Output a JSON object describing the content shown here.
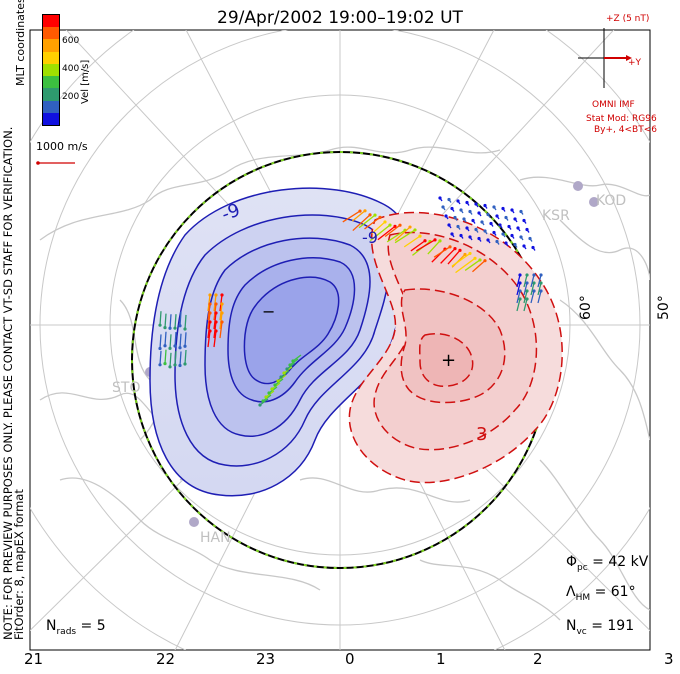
{
  "title": "29/Apr/2002 19:00–19:02 UT",
  "colorbar": {
    "label": "Vel [m/s]",
    "ticks": [
      "600",
      "400",
      "200"
    ],
    "colors": [
      "#ff0000",
      "#ff5a00",
      "#ffa000",
      "#ffd000",
      "#a0e000",
      "#3cc040",
      "#2e9a6e",
      "#3060c0",
      "#1010e0"
    ]
  },
  "coordinates_label": "MLT coordinates",
  "note_line1": "NOTE: FOR PREVIEW PURPOSES ONLY. PLEASE CONTACT VT-SD STAFF FOR VERIFICATION.",
  "note_line2": "FitOrder: 8, mapEX format",
  "vector_scale": "1000 m/s",
  "imf": {
    "z_label": "+Z (5 nT)",
    "y_label": "+Y",
    "source": "OMNI IMF",
    "model": "Stat Mod: RG96",
    "condition": "By+, 4<BT<6"
  },
  "stations": [
    "KSR",
    "KOD",
    "STO",
    "HAN"
  ],
  "latitude_labels": [
    "60°",
    "50°"
  ],
  "mlt_labels": [
    "21",
    "22",
    "23",
    "0",
    "1",
    "2",
    "3"
  ],
  "contour_labels": {
    "negative": "-9",
    "negative2": "-9",
    "positive": "3"
  },
  "extrema": {
    "min": "−",
    "max": "+"
  },
  "stats": {
    "phi_pc": "Φpc = 42 kV",
    "lambda_hm": "ΛHM = 61°",
    "n_vc": "Nvc = 191",
    "n_rads": "Nrads = 5"
  },
  "stats_parts": {
    "phi_sym": "Φ",
    "phi_sub": "pc",
    "phi_val": " = 42 kV",
    "lam_sym": "Λ",
    "lam_sub": "HM",
    "lam_val": " = 61°",
    "nvc_sym": "N",
    "nvc_sub": "vc",
    "nvc_val": " = 191",
    "nr_sym": "N",
    "nr_sub": "rads",
    "nr_val": " = 5"
  }
}
